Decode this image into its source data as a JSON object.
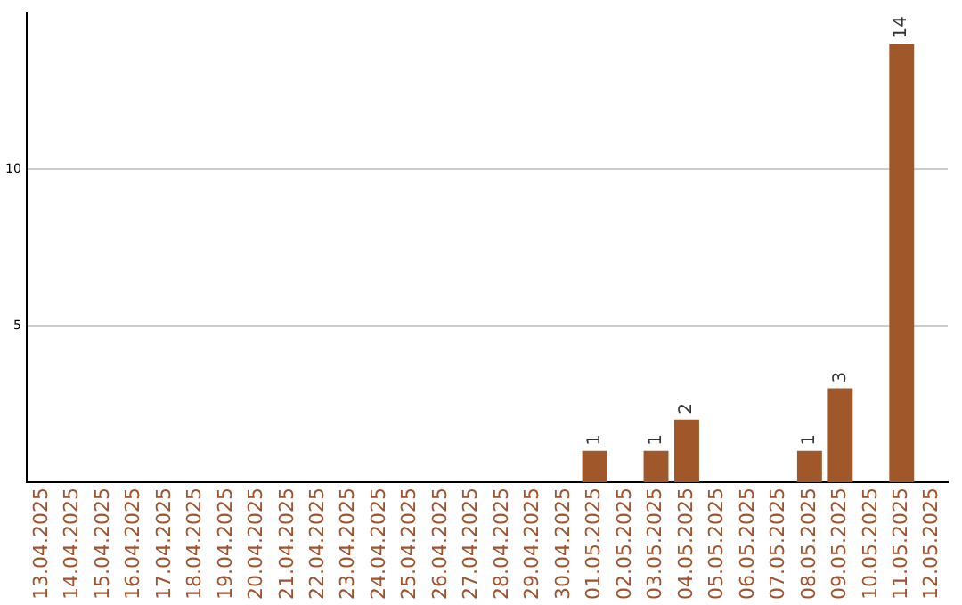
{
  "chart_data": {
    "type": "bar",
    "categories": [
      "13.04.2025",
      "14.04.2025",
      "15.04.2025",
      "16.04.2025",
      "17.04.2025",
      "18.04.2025",
      "19.04.2025",
      "20.04.2025",
      "21.04.2025",
      "22.04.2025",
      "23.04.2025",
      "24.04.2025",
      "25.04.2025",
      "26.04.2025",
      "27.04.2025",
      "28.04.2025",
      "29.04.2025",
      "30.04.2025",
      "01.05.2025",
      "02.05.2025",
      "03.05.2025",
      "04.05.2025",
      "05.05.2025",
      "06.05.2025",
      "07.05.2025",
      "08.05.2025",
      "09.05.2025",
      "10.05.2025",
      "11.05.2025",
      "12.05.2025"
    ],
    "values": [
      0,
      0,
      0,
      0,
      0,
      0,
      0,
      0,
      0,
      0,
      0,
      0,
      0,
      0,
      0,
      0,
      0,
      0,
      1,
      0,
      1,
      2,
      0,
      0,
      0,
      1,
      3,
      0,
      14,
      0
    ],
    "value_labels": [
      null,
      null,
      null,
      null,
      null,
      null,
      null,
      null,
      null,
      null,
      null,
      null,
      null,
      null,
      null,
      null,
      null,
      null,
      "1",
      null,
      "1",
      "2",
      null,
      null,
      null,
      "1",
      "3",
      null,
      "14",
      null
    ],
    "color": "#a0582a",
    "ylim": [
      0,
      15
    ],
    "yticks": [
      5,
      10
    ],
    "grid": "y"
  }
}
